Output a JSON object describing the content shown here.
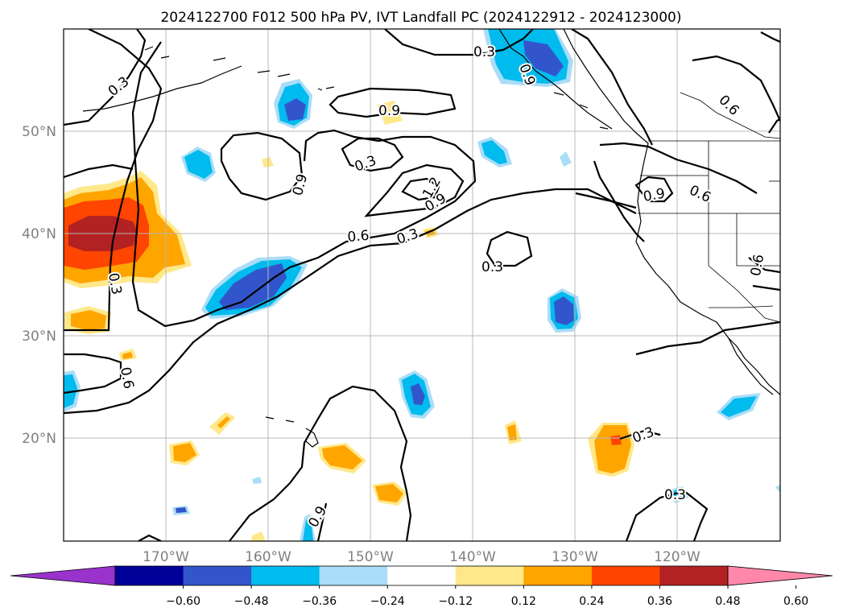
{
  "title": "2024122700 F012 500 hPa PV, IVT Landfall PC (2024122912 - 2024123000)",
  "longitude_ticks": [
    "170°W",
    "160°W",
    "150°W",
    "140°W",
    "130°W",
    "120°W"
  ],
  "latitude_ticks": [
    "50°N",
    "40°N",
    "30°N",
    "20°N"
  ],
  "colorbar": {
    "tick_labels": [
      "−0.60",
      "−0.48",
      "−0.36",
      "−0.24",
      "−0.12",
      "0.12",
      "0.24",
      "0.36",
      "0.48",
      "0.60"
    ],
    "colors": [
      "#9933cc",
      "#000099",
      "#3355cc",
      "#00bbee",
      "#aaddf7",
      "#ffffff",
      "#ffe88a",
      "#ffa500",
      "#ff4500",
      "#b22222",
      "#ff88aa"
    ],
    "extend": "both"
  },
  "contour_labels": [
    "0.3",
    "0.3",
    "0.6",
    "0.9",
    "0.6",
    "0.9",
    "0.3",
    "0.3",
    "0.9",
    "0.6",
    "0.3",
    "0.9",
    "0.6",
    "0.3",
    "0.6",
    "0.9",
    "0.3",
    "0.3",
    "0.9",
    "1.2"
  ],
  "map": {
    "projection": "equirectangular",
    "coastlines": true,
    "state_borders": true,
    "grid": true
  }
}
